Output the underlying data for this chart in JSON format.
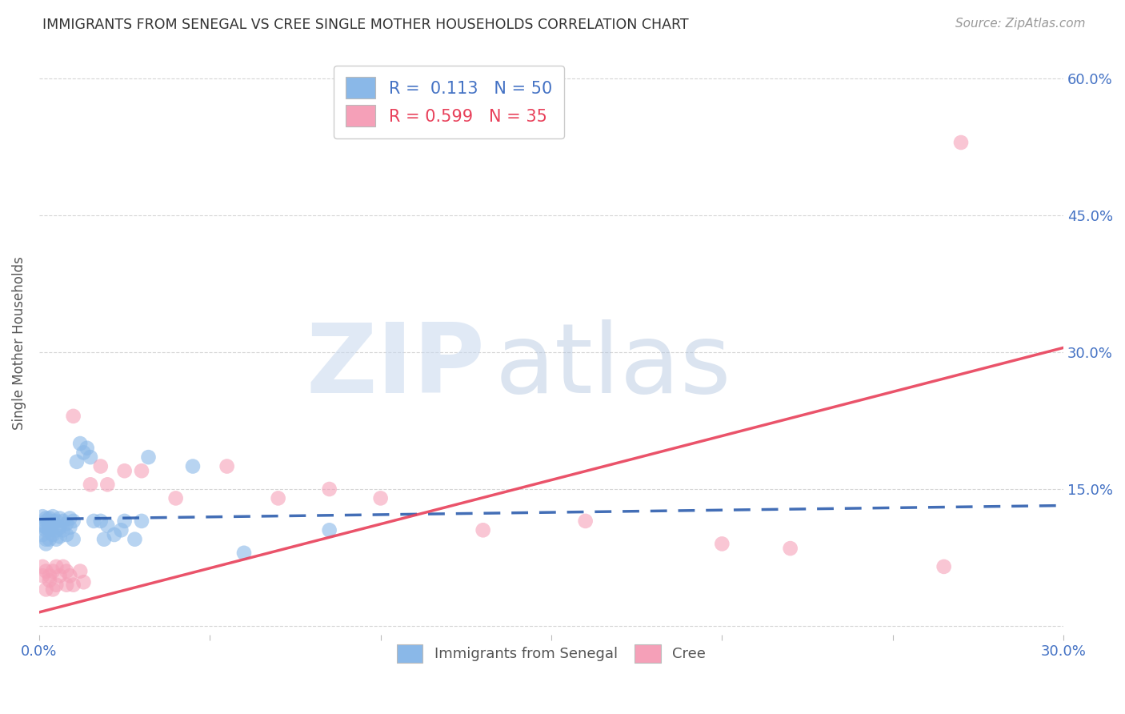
{
  "title": "IMMIGRANTS FROM SENEGAL VS CREE SINGLE MOTHER HOUSEHOLDS CORRELATION CHART",
  "source": "Source: ZipAtlas.com",
  "ylabel": "Single Mother Households",
  "xlim": [
    0.0,
    0.3
  ],
  "ylim": [
    -0.01,
    0.63
  ],
  "yticks": [
    0.0,
    0.15,
    0.3,
    0.45,
    0.6
  ],
  "xticks": [
    0.0,
    0.05,
    0.1,
    0.15,
    0.2,
    0.25,
    0.3
  ],
  "xticklabels": [
    "0.0%",
    "",
    "",
    "",
    "",
    "",
    "30.0%"
  ],
  "right_yticklabels": [
    "",
    "15.0%",
    "30.0%",
    "45.0%",
    "60.0%"
  ],
  "blue_color": "#8ab8e8",
  "pink_color": "#f5a0b8",
  "blue_line_color": "#2255aa",
  "pink_line_color": "#e8405a",
  "legend_blue_label": "R =  0.113   N = 50",
  "legend_pink_label": "R = 0.599   N = 35",
  "bottom_legend_blue": "Immigrants from Senegal",
  "bottom_legend_pink": "Cree",
  "blue_trend": [
    0.0,
    0.3,
    0.117,
    0.132
  ],
  "pink_trend": [
    0.0,
    0.3,
    0.015,
    0.305
  ],
  "senegal_x": [
    0.001,
    0.001,
    0.001,
    0.002,
    0.002,
    0.002,
    0.002,
    0.002,
    0.002,
    0.003,
    0.003,
    0.003,
    0.003,
    0.003,
    0.004,
    0.004,
    0.004,
    0.004,
    0.005,
    0.005,
    0.005,
    0.006,
    0.006,
    0.006,
    0.007,
    0.007,
    0.008,
    0.008,
    0.009,
    0.009,
    0.01,
    0.01,
    0.011,
    0.012,
    0.013,
    0.014,
    0.015,
    0.016,
    0.018,
    0.019,
    0.02,
    0.022,
    0.024,
    0.025,
    0.028,
    0.03,
    0.032,
    0.045,
    0.06,
    0.085
  ],
  "senegal_y": [
    0.11,
    0.12,
    0.1,
    0.115,
    0.108,
    0.095,
    0.105,
    0.118,
    0.09,
    0.112,
    0.118,
    0.108,
    0.105,
    0.095,
    0.115,
    0.12,
    0.11,
    0.1,
    0.115,
    0.105,
    0.095,
    0.118,
    0.108,
    0.098,
    0.115,
    0.105,
    0.112,
    0.1,
    0.118,
    0.108,
    0.115,
    0.095,
    0.18,
    0.2,
    0.19,
    0.195,
    0.185,
    0.115,
    0.115,
    0.095,
    0.11,
    0.1,
    0.105,
    0.115,
    0.095,
    0.115,
    0.185,
    0.175,
    0.08,
    0.105
  ],
  "cree_x": [
    0.001,
    0.001,
    0.002,
    0.002,
    0.003,
    0.003,
    0.004,
    0.004,
    0.005,
    0.005,
    0.006,
    0.007,
    0.008,
    0.008,
    0.009,
    0.01,
    0.01,
    0.012,
    0.013,
    0.015,
    0.018,
    0.02,
    0.025,
    0.03,
    0.04,
    0.055,
    0.07,
    0.085,
    0.1,
    0.13,
    0.16,
    0.2,
    0.22,
    0.265,
    0.27
  ],
  "cree_y": [
    0.055,
    0.065,
    0.06,
    0.04,
    0.05,
    0.055,
    0.06,
    0.04,
    0.065,
    0.045,
    0.055,
    0.065,
    0.06,
    0.045,
    0.055,
    0.23,
    0.045,
    0.06,
    0.048,
    0.155,
    0.175,
    0.155,
    0.17,
    0.17,
    0.14,
    0.175,
    0.14,
    0.15,
    0.14,
    0.105,
    0.115,
    0.09,
    0.085,
    0.065,
    0.53
  ]
}
